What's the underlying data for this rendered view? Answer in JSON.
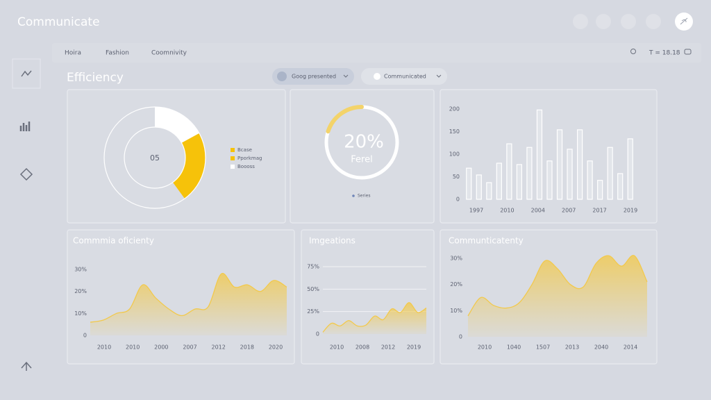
{
  "header": {
    "title": "Communicate",
    "toolbar_text": "T = 18.18"
  },
  "nav": [
    "Hoira",
    "Fashion",
    "Coomnivity"
  ],
  "page_title": "Efficiency",
  "filters": [
    "Goog presented",
    "Communicated"
  ],
  "charts": [
    {
      "type": "pie",
      "center_label": "05",
      "categories": [
        "Bcase",
        "Pporkmag",
        "Boooss"
      ],
      "values": [
        17,
        23,
        60
      ],
      "colors": [
        "#ffffff",
        "#f6c20a",
        "#d9dce3"
      ],
      "legend_colors": [
        "#f6c20a",
        "#f6c20a",
        "#ffffff"
      ]
    },
    {
      "type": "gauge",
      "value": 20,
      "value_label": "20%",
      "label": "Ferel",
      "ylim": [
        0,
        100
      ],
      "legend": "Series",
      "color": "#f3d36a"
    },
    {
      "type": "bar",
      "values": [
        69,
        54,
        37,
        80,
        123,
        77,
        115,
        198,
        85,
        154,
        111,
        154,
        85,
        42,
        115,
        57,
        134
      ],
      "ylim": [
        0,
        200
      ],
      "yticks": [
        0,
        50,
        100,
        150,
        200
      ],
      "xtick_labels": [
        "1997",
        "2010",
        "2004",
        "2007",
        "2017",
        "2019"
      ],
      "color": "#ffffff"
    },
    {
      "type": "area",
      "title": "Commmia oficienty",
      "values": [
        6,
        7,
        10,
        12,
        23,
        17,
        12,
        9,
        12,
        13,
        28,
        22,
        23,
        20,
        25,
        22
      ],
      "ylim": [
        0,
        30
      ],
      "yticks": [
        0,
        {
          "value": 10,
          "label": "10%"
        },
        {
          "value": 20,
          "label": "20%"
        },
        {
          "value": 30,
          "label": "30%"
        }
      ],
      "xtick_labels": [
        "2010",
        "2010",
        "2000",
        "2007",
        "2012",
        "2018",
        "2020"
      ],
      "grid": false,
      "color": "#f2c94c"
    },
    {
      "type": "area",
      "title": "Imgeations",
      "values": [
        2,
        12,
        9,
        15,
        9,
        10,
        20,
        16,
        28,
        24,
        35,
        24,
        29
      ],
      "ylim": [
        0,
        75
      ],
      "yticks": [
        0,
        {
          "value": 25,
          "label": "25%"
        },
        {
          "value": 50,
          "label": "50%"
        },
        {
          "value": 75,
          "label": "75%"
        }
      ],
      "xtick_labels": [
        "2010",
        "2008",
        "2012",
        "2019"
      ],
      "grid": true,
      "color": "#f2c94c"
    },
    {
      "type": "area",
      "title": "Communticatenty",
      "values": [
        8,
        15,
        12,
        11,
        13,
        20,
        29,
        26,
        20,
        19,
        28,
        31,
        27,
        31,
        21
      ],
      "ylim": [
        0,
        30
      ],
      "yticks": [
        0,
        {
          "value": 10,
          "label": "10%"
        },
        {
          "value": 20,
          "label": "20%"
        },
        {
          "value": 30,
          "label": "30%"
        }
      ],
      "xtick_labels": [
        "2010",
        "1040",
        "1507",
        "2013",
        "2040",
        "2014"
      ],
      "grid": false,
      "color": "#f2c94c"
    }
  ]
}
